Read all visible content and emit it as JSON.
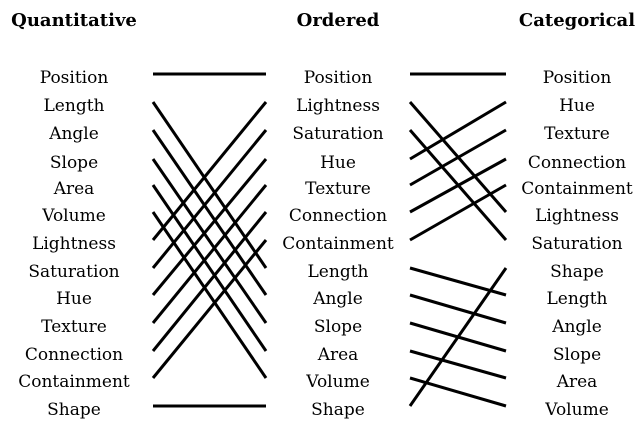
{
  "columns": [
    {
      "title": "Quantitative",
      "items": [
        "Position",
        "Length",
        "Angle",
        "Slope",
        "Area",
        "Volume",
        "Lightness",
        "Saturation",
        "Hue",
        "Texture",
        "Connection",
        "Containment",
        "Shape"
      ]
    },
    {
      "title": "Ordered",
      "items": [
        "Position",
        "Lightness",
        "Saturation",
        "Hue",
        "Texture",
        "Connection",
        "Containment",
        "Length",
        "Angle",
        "Slope",
        "Area",
        "Volume",
        "Shape"
      ]
    },
    {
      "title": "Categorical",
      "items": [
        "Position",
        "Hue",
        "Texture",
        "Connection",
        "Containment",
        "Lightness",
        "Saturation",
        "Shape",
        "Length",
        "Angle",
        "Slope",
        "Area",
        "Volume"
      ]
    }
  ]
}
